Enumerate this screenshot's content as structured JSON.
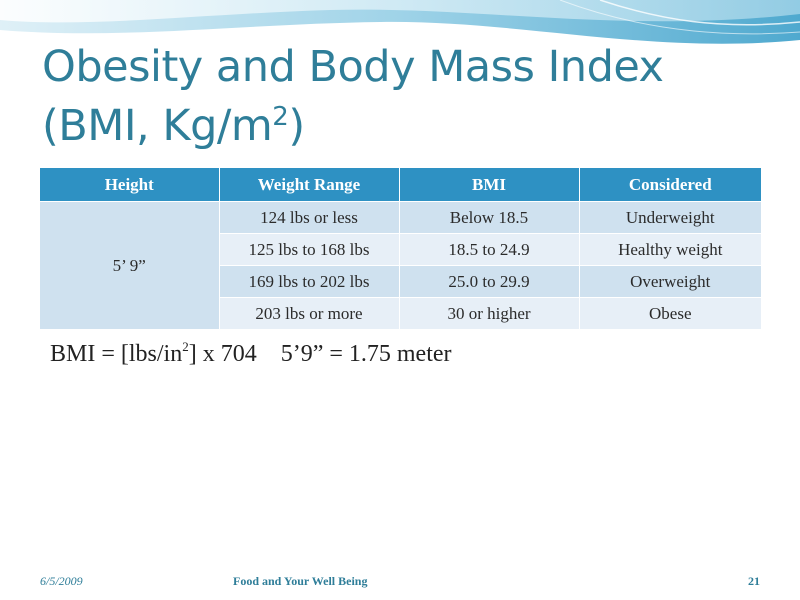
{
  "slide": {
    "title_line1": "Obesity and Body Mass Index",
    "title_line2_prefix": "(BMI, Kg/m",
    "title_line2_sup": "2",
    "title_line2_suffix": ")",
    "theme_color": "#2f7e99",
    "header_color": "#2e91c3"
  },
  "table": {
    "headers": [
      "Height",
      "Weight Range",
      "BMI",
      "Considered"
    ],
    "height_value": "5’ 9”",
    "rows": [
      {
        "weight": "124 lbs or less",
        "bmi": "Below 18.5",
        "considered": "Underweight"
      },
      {
        "weight": "125 lbs to 168 lbs",
        "bmi": "18.5 to 24.9",
        "considered": "Healthy weight"
      },
      {
        "weight": "169 lbs to 202 lbs",
        "bmi": "25.0 to 29.9",
        "considered": "Overweight"
      },
      {
        "weight": "203 lbs or more",
        "bmi": "30 or higher",
        "considered": "Obese"
      }
    ]
  },
  "formula": {
    "prefix": "BMI = [lbs/in",
    "sup": "2",
    "suffix": "] x 704    5’9” = 1.75 meter"
  },
  "footer": {
    "date": "6/5/2009",
    "center": "Food and Your Well Being",
    "page": "21"
  }
}
